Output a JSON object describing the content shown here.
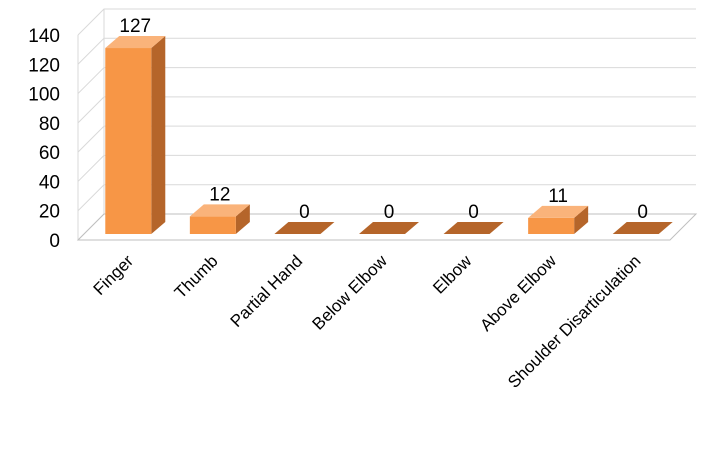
{
  "chart_data": {
    "type": "bar",
    "three_d": true,
    "categories": [
      "Finger",
      "Thumb",
      "Partial Hand",
      "Below Elbow",
      "Elbow",
      "Above Elbow",
      "Shoulder Disarticulation"
    ],
    "values": [
      127,
      12,
      0,
      0,
      0,
      11,
      0
    ],
    "data_labels": [
      "127",
      "12",
      "0",
      "0",
      "0",
      "11",
      "0"
    ],
    "ylim": [
      0,
      140
    ],
    "yticks": [
      "0",
      "20",
      "40",
      "60",
      "80",
      "100",
      "120",
      "140"
    ],
    "title": "",
    "xlabel": "",
    "ylabel": "",
    "grid": true,
    "legend": "none",
    "colors": {
      "bar_front": "#F79646",
      "bar_top": "#FAB37A",
      "bar_side": "#B5652A",
      "grid": "#D9D9D9",
      "floor": "#BFBFBF"
    }
  }
}
